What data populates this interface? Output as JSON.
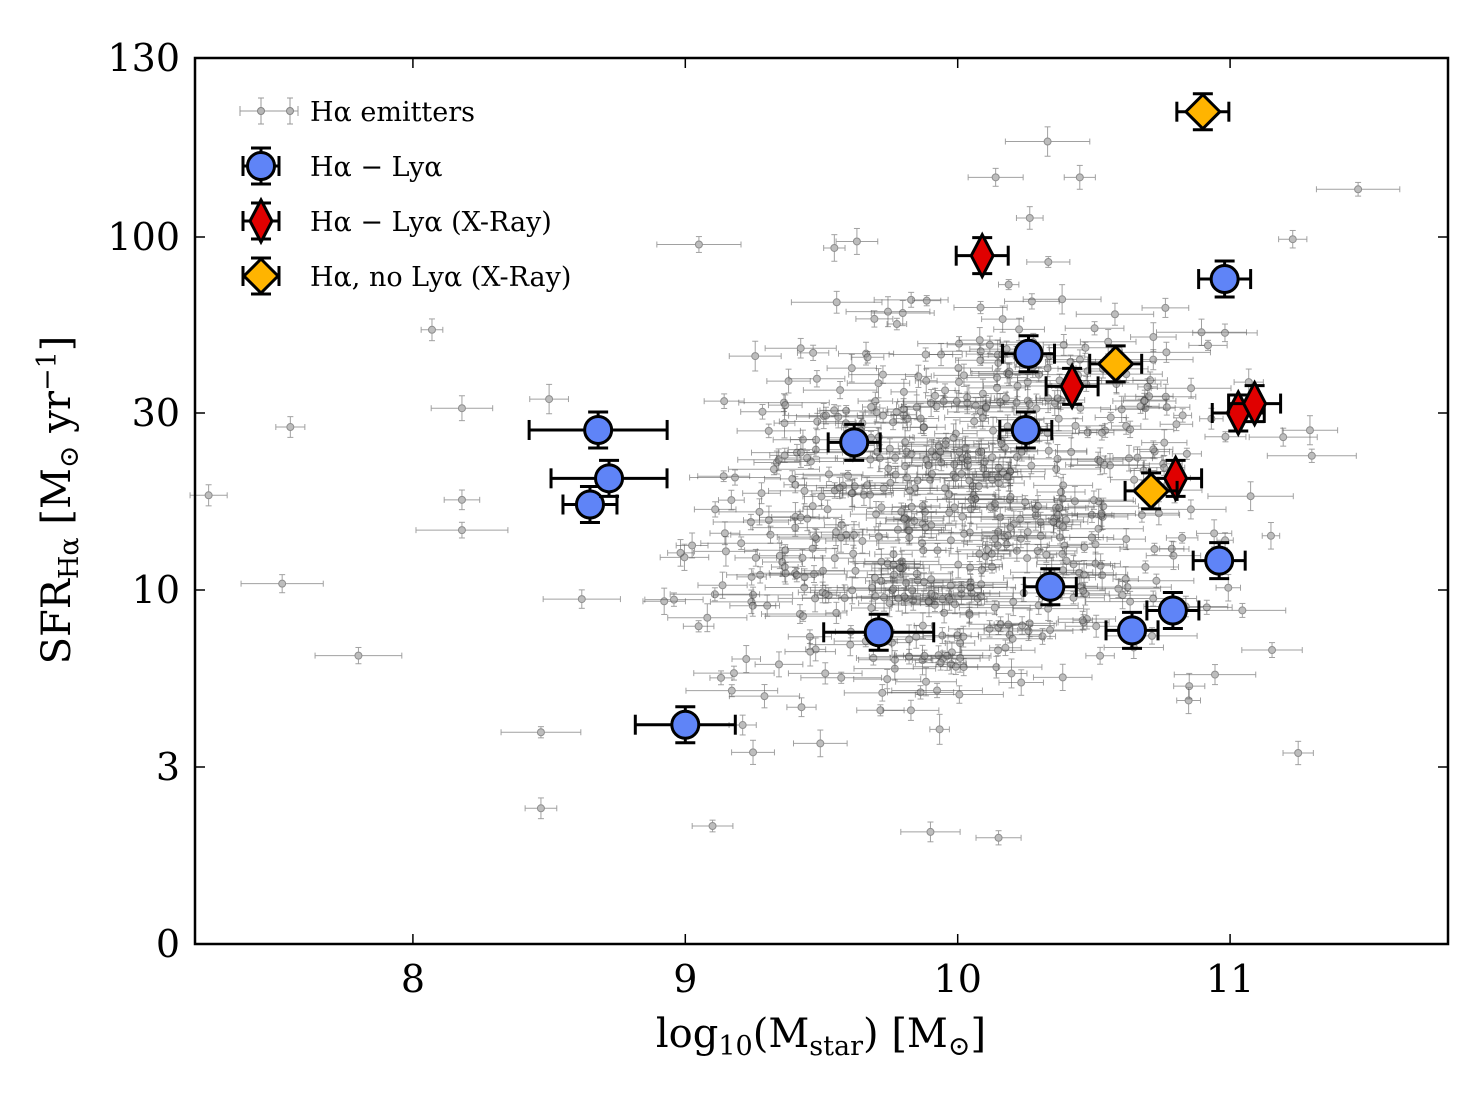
{
  "chart_data": {
    "type": "scatter",
    "title": "",
    "xlabel": {
      "base": "log",
      "sub1": "10",
      "mid": "(M",
      "sub2": "star",
      "end": ") [M",
      "sub3": "⊙",
      "close": "]"
    },
    "ylabel": {
      "base": "SFR",
      "sub": "Hα",
      "mid": " [M",
      "sub2": "⊙",
      "rest": " yr",
      "sup": "−1",
      "close": "]"
    },
    "xlim": [
      7.2,
      11.8
    ],
    "x_ticks": [
      "8",
      "9",
      "10",
      "11"
    ],
    "x_tick_values": [
      8,
      9,
      10,
      11
    ],
    "y_ticks": [
      "0",
      "3",
      "10",
      "30",
      "100",
      "130"
    ],
    "y_scale": "custom nonlinear (0, 3, 10, 30, 100, 130 evenly spaced)",
    "legend_position": "top-left",
    "series": [
      {
        "name": "Hα emitters",
        "marker": "small-circle",
        "color": "#808080",
        "note": "approx. 700 background sources with x/y error bars; representative sample listed",
        "points": [
          {
            "x": 7.25,
            "y": 18.0
          },
          {
            "x": 7.52,
            "y": 10.4
          },
          {
            "x": 7.55,
            "y": 27.5
          },
          {
            "x": 7.8,
            "y": 6.4
          },
          {
            "x": 8.07,
            "y": 53.0
          },
          {
            "x": 8.18,
            "y": 31.0
          },
          {
            "x": 8.18,
            "y": 17.5
          },
          {
            "x": 8.18,
            "y": 14.5
          },
          {
            "x": 8.47,
            "y": 3.8
          },
          {
            "x": 8.47,
            "y": 2.3
          },
          {
            "x": 8.5,
            "y": 33.0
          },
          {
            "x": 8.62,
            "y": 9.4
          },
          {
            "x": 9.05,
            "y": 95.0
          },
          {
            "x": 9.63,
            "y": 97.0
          },
          {
            "x": 10.33,
            "y": 116.0
          },
          {
            "x": 11.23,
            "y": 98.5
          },
          {
            "x": 11.47,
            "y": 108.0
          },
          {
            "x": 10.85,
            "y": 5.2
          },
          {
            "x": 11.25,
            "y": 3.3
          },
          {
            "x": 11.15,
            "y": 14.0
          },
          {
            "x": 11.3,
            "y": 23.0
          },
          {
            "x": 9.1,
            "y": 2.0
          },
          {
            "x": 9.9,
            "y": 1.9
          },
          {
            "x": 10.15,
            "y": 1.8
          }
        ]
      },
      {
        "name": "Hα − Lyα",
        "marker": "circle",
        "color": "#5f84f7",
        "points": [
          {
            "x": 8.65,
            "y": 17.0
          },
          {
            "x": 8.68,
            "y": 27.0
          },
          {
            "x": 8.72,
            "y": 20.0
          },
          {
            "x": 9.0,
            "y": 4.0
          },
          {
            "x": 9.62,
            "y": 25.0
          },
          {
            "x": 9.71,
            "y": 7.5
          },
          {
            "x": 10.25,
            "y": 27.0
          },
          {
            "x": 10.26,
            "y": 45.0
          },
          {
            "x": 10.34,
            "y": 10.2
          },
          {
            "x": 10.64,
            "y": 7.6
          },
          {
            "x": 10.79,
            "y": 8.7
          },
          {
            "x": 10.96,
            "y": 12.0
          },
          {
            "x": 10.98,
            "y": 75.0
          }
        ]
      },
      {
        "name": "Hα − Lyα (X-Ray)",
        "marker": "thin-diamond",
        "color": "#e00000",
        "points": [
          {
            "x": 10.09,
            "y": 88.0
          },
          {
            "x": 10.42,
            "y": 36.0
          },
          {
            "x": 10.8,
            "y": 20.0
          },
          {
            "x": 11.03,
            "y": 30.0
          },
          {
            "x": 11.09,
            "y": 32.0
          }
        ]
      },
      {
        "name": "Hα, no Lyα (X-Ray)",
        "marker": "diamond",
        "color": "#ffb400",
        "points": [
          {
            "x": 10.58,
            "y": 42.0
          },
          {
            "x": 10.71,
            "y": 18.5
          },
          {
            "x": 10.9,
            "y": 121.0
          }
        ]
      }
    ]
  }
}
